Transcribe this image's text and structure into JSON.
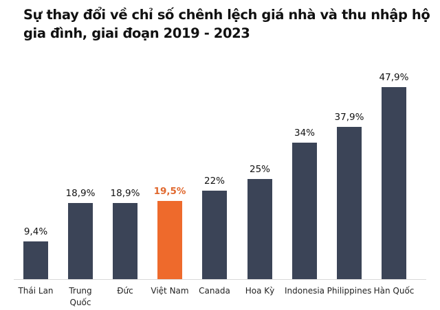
{
  "title": "Sự thay đổi về chỉ số chênh lệch giá nhà và thu nhập hộ gia đình, giai đoạn 2019 - 2023",
  "colors": {
    "bar": "#3b4457",
    "highlight": "#ee6a2c",
    "highlight_label": "#e0682e"
  },
  "chart_data": {
    "type": "bar",
    "title": "Sự thay đổi về chỉ số chênh lệch giá nhà và thu nhập hộ gia đình, giai đoạn 2019 - 2023",
    "xlabel": "",
    "ylabel": "",
    "categories": [
      "Thái Lan",
      "Trung Quốc",
      "Đức",
      "Việt Nam",
      "Canada",
      "Hoa Kỳ",
      "Indonesia",
      "Philippines",
      "Hàn Quốc"
    ],
    "values": [
      9.4,
      18.9,
      18.9,
      19.5,
      22,
      25,
      34,
      37.9,
      47.9
    ],
    "value_labels": [
      "9,4%",
      "18,9%",
      "18,9%",
      "19,5%",
      "22%",
      "25%",
      "34%",
      "37,9%",
      "47,9%"
    ],
    "highlight_index": 3,
    "grid": false,
    "legend": "none",
    "ylim": [
      0,
      50
    ]
  }
}
